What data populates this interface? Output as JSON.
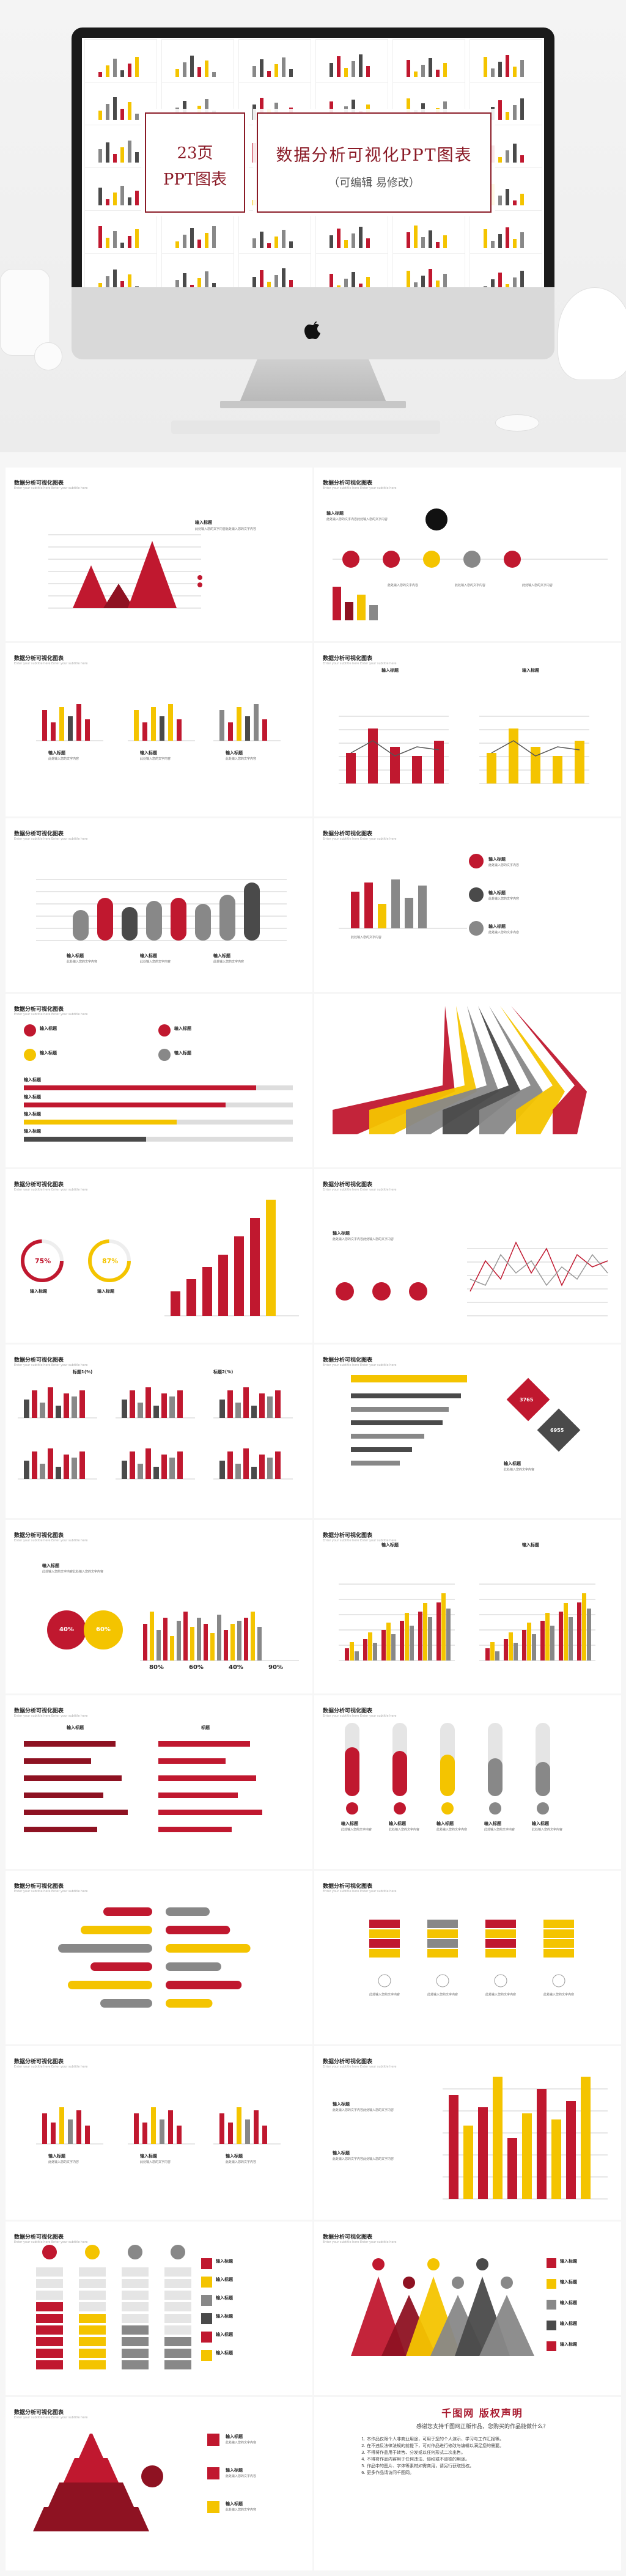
{
  "colors": {
    "red": "#c0182f",
    "darkred": "#8e1222",
    "yellow": "#f4c400",
    "gray": "#888888",
    "dark": "#4a4a4a"
  },
  "hero": {
    "left_box": {
      "line1": "23页",
      "line2": "PPT图表"
    },
    "right_box": {
      "title": "数据分析可视化PPT图表",
      "subtitle": "（可编辑  易修改）"
    }
  },
  "slide_title": "数据分析可视化图表",
  "slide_sub": "Enter your subtitle here Enter your subtitle here",
  "labels": {
    "input": "输入标题",
    "body": "此处输入您的文字内容此处输入您的文字内容",
    "body_short": "此处输入您的文字内容",
    "title_c": "标题",
    "title_1": "标题1(%)",
    "title_2": "标题2(%)"
  },
  "percent_rings": [
    "75%",
    "87%"
  ],
  "pct_circles": [
    "40%",
    "60%"
  ],
  "bar_labels_pct": [
    "80%",
    "60%",
    "40%",
    "90%"
  ],
  "diamonds": [
    "3765",
    "6955"
  ],
  "footer": {
    "heading": "千图网  版权声明",
    "question": "感谢您支持千图网正版作品，您购买的作品能做什么？",
    "items": [
      "本作品仅限个人非商业用途，可用于您的个人演示、学习与工作汇报等。",
      "在不违反法律法规的前提下，可对作品进行修改与编辑以满足您的需要。",
      "不得将作品用于转售、分发或以任何形式二次出售。",
      "不得将作品内容用于任何违法、侵权或不道德的用途。",
      "作品中的图片、字体等素材如需商用，请另行获取授权。",
      "更多作品请访问千图网。"
    ]
  }
}
